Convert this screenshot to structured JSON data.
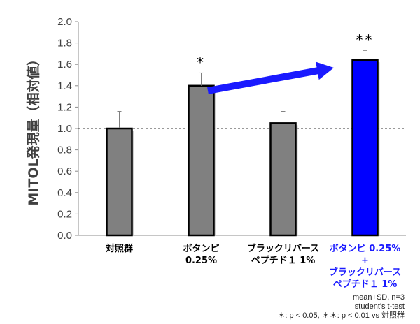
{
  "chart_data": {
    "type": "bar",
    "ylabel": "MITOL発現量（相対値）",
    "ylim": [
      0,
      2.0
    ],
    "yticks": [
      "0.0",
      "0.2",
      "0.4",
      "0.6",
      "0.8",
      "1.0",
      "1.2",
      "1.4",
      "1.6",
      "1.8",
      "2.0"
    ],
    "reference_line": 1.0,
    "categories": [
      {
        "lines": [
          "対照群"
        ],
        "highlight": false
      },
      {
        "lines": [
          "ボタンピ",
          "0.25%"
        ],
        "highlight": false
      },
      {
        "lines": [
          "ブラックリバース",
          "ペプチド１ 1%"
        ],
        "highlight": false
      },
      {
        "lines": [
          "ボタンピ 0.25%",
          "+",
          "ブラックリバース",
          "ペプチド１ 1%"
        ],
        "highlight": true
      }
    ],
    "values": [
      1.0,
      1.4,
      1.05,
      1.64
    ],
    "errors": [
      0.16,
      0.12,
      0.11,
      0.09
    ],
    "significance": [
      "",
      "*",
      "",
      "**"
    ],
    "colors": {
      "default": "#808080",
      "highlight": "#0000ff",
      "arrow": "#1a1aff"
    },
    "grid": false
  },
  "notes": {
    "line1": "mean+SD, n=3",
    "line2": "student's t-test",
    "line3": "＊: p < 0.05, ＊＊: p < 0.01 vs 対照群"
  }
}
